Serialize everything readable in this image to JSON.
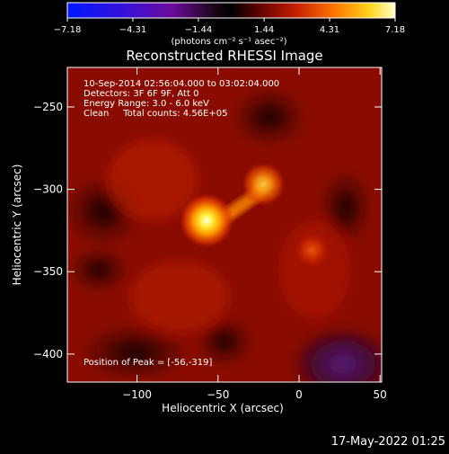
{
  "chart_data": {
    "type": "heatmap",
    "title": "Reconstructed RHESSI Image",
    "colorbar": {
      "ticks": [
        "-7.18",
        "-4.31",
        "-1.44",
        "1.44",
        "4.31",
        "7.18"
      ],
      "tick_values": [
        -7.18,
        -4.31,
        -1.44,
        1.44,
        4.31,
        7.18
      ],
      "range": [
        -7.18,
        7.18
      ],
      "units_label": "(photons cm⁻² s⁻¹ asec⁻²)"
    },
    "annotations": [
      "10-Sep-2014 02:56:04.000 to 03:02:04.000",
      "Detectors: 3F 6F 9F, Att 0",
      "Energy Range: 3.0 - 6.0 keV",
      "Clean     Total counts: 4.56E+05"
    ],
    "peak_text": "Position of Peak = [-56,-319]",
    "xlabel": "Heliocentric X (arcsec)",
    "ylabel": "Heliocentric Y (arcsec)",
    "xlim": [
      -143,
      51
    ],
    "ylim": [
      -417,
      -226
    ],
    "xticks": [
      "-100",
      "-50",
      "0",
      "50"
    ],
    "xtick_values": [
      -100,
      -50,
      0,
      50
    ],
    "yticks": [
      "-250",
      "-300",
      "-350",
      "-400"
    ],
    "ytick_values": [
      -250,
      -300,
      -350,
      -400
    ],
    "sources": [
      {
        "x": -57,
        "y": -319,
        "level": 1.0
      },
      {
        "x": -22,
        "y": -297,
        "level": 0.72
      },
      {
        "x": 8,
        "y": -337,
        "level": 0.42
      }
    ],
    "colors": {
      "background": "#000000",
      "text": "#ffffff"
    }
  },
  "footer": {
    "timestamp": "17-May-2022 01:25"
  }
}
